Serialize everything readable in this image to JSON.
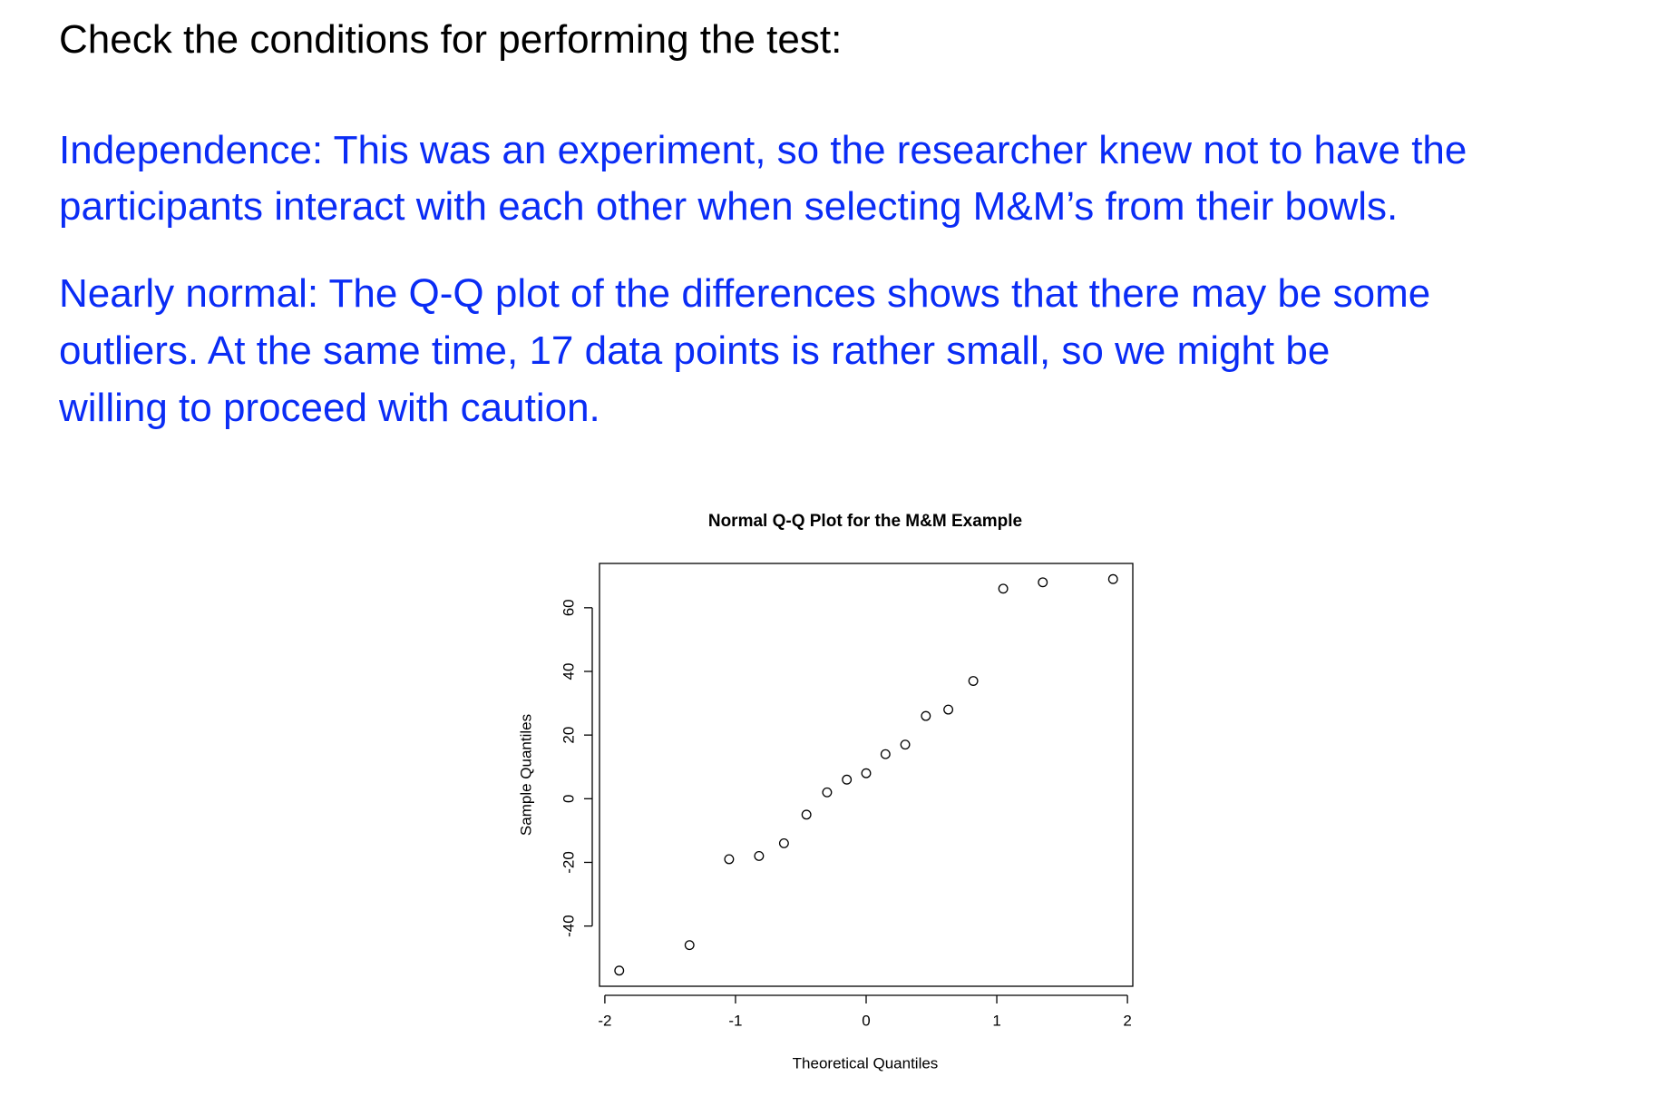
{
  "heading": "Check the conditions for performing the test:",
  "paragraphs": [
    [
      "Independence: This was an experiment, so the researcher knew not to have the",
      "participants interact with each other when selecting M&M’s from their bowls."
    ],
    [
      "Nearly normal: The Q-Q plot of the differences shows that there may be some",
      "outliers. At the same time, 17 data points is rather small, so we might be",
      "willing to proceed with caution."
    ]
  ],
  "chart_data": {
    "type": "scatter",
    "title": "Normal Q-Q Plot for the M&M Example",
    "x_label": "Theoretical Quantiles",
    "y_label": "Sample Quantiles",
    "x": [
      -1.89,
      -1.352,
      -1.049,
      -0.82,
      -0.629,
      -0.457,
      -0.299,
      -0.148,
      0,
      0.148,
      0.299,
      0.457,
      0.629,
      0.82,
      1.049,
      1.352,
      1.89
    ],
    "values": [
      -54,
      -46,
      -19,
      -18,
      -14,
      -5,
      2,
      6,
      8,
      14,
      17,
      26,
      28,
      37,
      66,
      68,
      69
    ],
    "color": "#000000",
    "xlim": [
      -2.041,
      2.041
    ],
    "ylim": [
      -58.92,
      73.92
    ],
    "xticks": [
      -2,
      -1,
      0,
      1,
      2
    ],
    "yticks": [
      -40,
      -20,
      0,
      20,
      40,
      60
    ]
  }
}
